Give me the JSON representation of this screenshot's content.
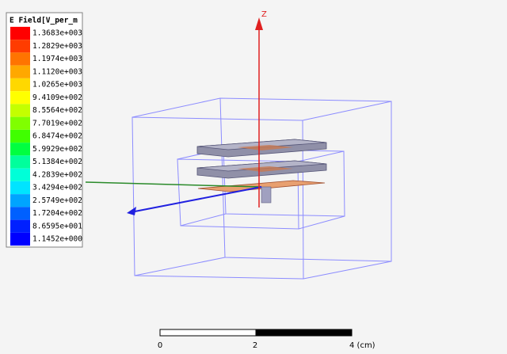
{
  "legend": {
    "title": "E Field[V_per_m",
    "entries": [
      {
        "label": "1.3683e+003",
        "color": "#ff0000"
      },
      {
        "label": "1.2829e+003",
        "color": "#ff3c00"
      },
      {
        "label": "1.1974e+003",
        "color": "#ff7400"
      },
      {
        "label": "1.1120e+003",
        "color": "#ffa800"
      },
      {
        "label": "1.0265e+003",
        "color": "#ffd800"
      },
      {
        "label": "9.4109e+002",
        "color": "#ffff00"
      },
      {
        "label": "8.5564e+002",
        "color": "#c4ff00"
      },
      {
        "label": "7.7019e+002",
        "color": "#80ff00"
      },
      {
        "label": "6.8474e+002",
        "color": "#40ff00"
      },
      {
        "label": "5.9929e+002",
        "color": "#00ff40"
      },
      {
        "label": "5.1384e+002",
        "color": "#00ff9c"
      },
      {
        "label": "4.2839e+002",
        "color": "#00ffd8"
      },
      {
        "label": "3.4294e+002",
        "color": "#00e4ff"
      },
      {
        "label": "2.5749e+002",
        "color": "#00a4ff"
      },
      {
        "label": "1.7204e+002",
        "color": "#0060ff"
      },
      {
        "label": "8.6595e+001",
        "color": "#0020ff"
      },
      {
        "label": "1.1452e+000",
        "color": "#0000ff"
      }
    ]
  },
  "axis_label": "Z",
  "scale_bar": {
    "labels": [
      "0",
      "2",
      "4 (cm)"
    ]
  }
}
